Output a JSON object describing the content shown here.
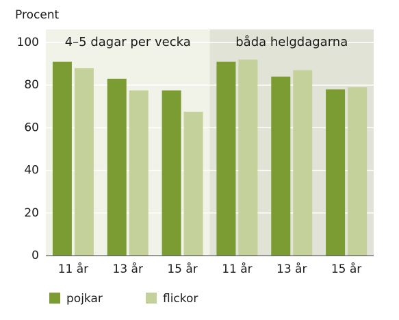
{
  "chart_data": {
    "type": "bar",
    "y_label": "Procent",
    "ylim": [
      0,
      100
    ],
    "yticks": [
      0,
      20,
      40,
      60,
      80,
      100
    ],
    "grid": true,
    "series": [
      {
        "name": "pojkar",
        "color": "#7b9c32"
      },
      {
        "name": "flickor",
        "color": "#c5d19a"
      }
    ],
    "panels": [
      {
        "title": "4–5 dagar per vecka",
        "background": "#f2f3e8",
        "categories": [
          "11 år",
          "13 år",
          "15 år"
        ],
        "series": [
          {
            "values": [
              91,
              83,
              77.5
            ]
          },
          {
            "values": [
              88,
              77.5,
              67.5
            ]
          }
        ]
      },
      {
        "title": "båda helgdagarna",
        "background": "#e1e3d7",
        "categories": [
          "11 år",
          "13 år",
          "15 år"
        ],
        "series": [
          {
            "values": [
              91,
              84,
              78
            ]
          },
          {
            "values": [
              92,
              87,
              79
            ]
          }
        ]
      }
    ]
  }
}
